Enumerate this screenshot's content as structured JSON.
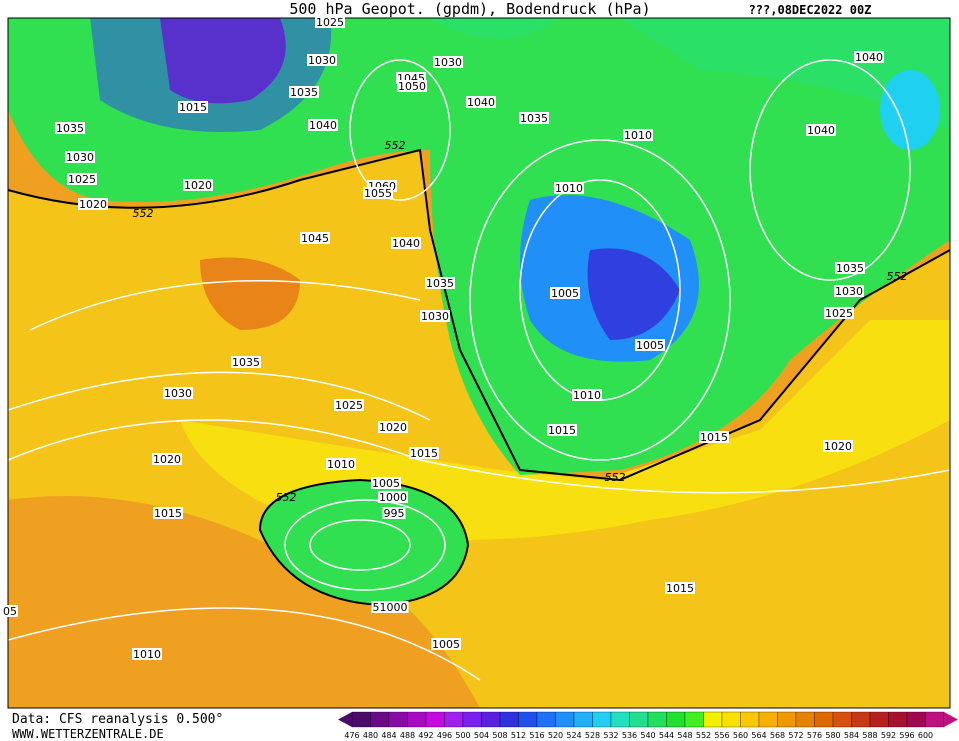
{
  "header": {
    "title": "500 hPa Geopot. (gpdm), Bodendruck (hPa)",
    "date": "???,08DEC2022 00Z"
  },
  "footer": {
    "source": "Data: CFS reanalysis 0.500°",
    "site": "WWW.WETTERZENTRALE.DE"
  },
  "isobar_labels": [
    "1025",
    "1030",
    "1015",
    "1035",
    "1035",
    "1030",
    "1025",
    "1020",
    "1020",
    "552",
    "1040",
    "1045",
    "1050",
    "1030",
    "1040",
    "1035",
    "1010",
    "1040",
    "1040",
    "552",
    "1060",
    "1055",
    "1045",
    "1040",
    "1035",
    "1030",
    "1010",
    "1005",
    "1005",
    "1010",
    "1015",
    "1015",
    "1035",
    "552",
    "1030",
    "1025",
    "1020",
    "1035",
    "1030",
    "1025",
    "1020",
    "1015",
    "1010",
    "1005",
    "1000",
    "995",
    "552",
    "1020",
    "1015",
    "51000",
    "1005",
    "1015",
    "1010",
    "05",
    "552"
  ],
  "legend": {
    "levels": [
      476,
      480,
      484,
      488,
      492,
      496,
      500,
      504,
      508,
      512,
      516,
      520,
      524,
      528,
      532,
      536,
      540,
      544,
      548,
      552,
      556,
      560,
      564,
      568,
      572,
      576,
      580,
      584,
      588,
      592,
      596,
      600
    ],
    "colors": [
      "#4b0b6b",
      "#6a0a8a",
      "#8a0aa8",
      "#a80ac4",
      "#c40ae0",
      "#a020f0",
      "#7a20f0",
      "#5a20e0",
      "#3030e0",
      "#2050f0",
      "#2070f8",
      "#2090f8",
      "#20b0f8",
      "#20d0f0",
      "#20e0c0",
      "#20e090",
      "#20e060",
      "#20e030",
      "#40f020",
      "#f0f000",
      "#f8e000",
      "#f8c800",
      "#f8b000",
      "#f09800",
      "#e88000",
      "#e06800",
      "#d85010",
      "#c83818",
      "#b82020",
      "#a81030",
      "#a00850",
      "#c01080"
    ]
  }
}
